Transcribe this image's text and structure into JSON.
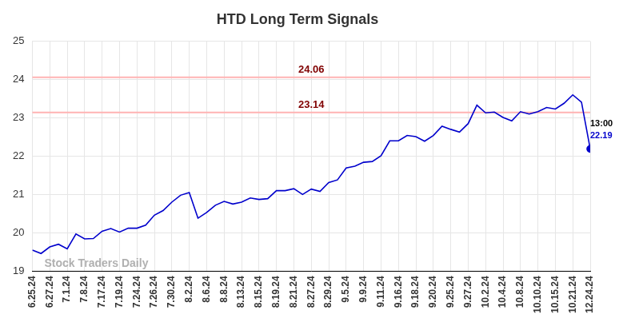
{
  "chart_data": {
    "type": "line",
    "title": "HTD Long Term Signals",
    "categories": [
      "6.25.24",
      null,
      "6.27.24",
      null,
      "7.1.24",
      null,
      "7.8.24",
      null,
      "7.17.24",
      null,
      "7.19.24",
      null,
      "7.24.24",
      null,
      "7.26.24",
      null,
      "7.30.24",
      null,
      "8.2.24",
      null,
      "8.6.24",
      null,
      "8.8.24",
      null,
      "8.13.24",
      null,
      "8.15.24",
      null,
      "8.19.24",
      null,
      "8.21.24",
      null,
      "8.27.24",
      null,
      "8.29.24",
      null,
      "9.5.24",
      null,
      "9.9.24",
      null,
      "9.11.24",
      null,
      "9.16.24",
      null,
      "9.18.24",
      null,
      "9.20.24",
      null,
      "9.25.24",
      null,
      "9.27.24",
      null,
      "10.2.24",
      null,
      "10.4.24",
      null,
      "10.8.24",
      null,
      "10.10.24",
      null,
      "10.15.24",
      null,
      "10.21.24",
      null,
      "12.24.24"
    ],
    "values": [
      19.55,
      19.46,
      19.63,
      19.7,
      19.58,
      19.97,
      19.84,
      19.85,
      20.04,
      20.11,
      20.02,
      20.12,
      20.12,
      20.2,
      20.46,
      20.58,
      20.8,
      20.98,
      21.05,
      20.38,
      20.53,
      20.72,
      20.82,
      20.75,
      20.8,
      20.91,
      20.87,
      20.89,
      21.1,
      21.1,
      21.15,
      21.0,
      21.14,
      21.08,
      21.31,
      21.38,
      21.69,
      21.74,
      21.84,
      21.86,
      22.01,
      22.4,
      22.4,
      22.54,
      22.51,
      22.39,
      22.54,
      22.78,
      22.7,
      22.63,
      22.85,
      23.33,
      23.13,
      23.15,
      23.01,
      22.92,
      23.16,
      23.1,
      23.16,
      23.27,
      23.23,
      23.38,
      23.6,
      23.41,
      22.19
    ],
    "color": "#0000cc",
    "ylim": [
      19,
      25
    ],
    "yticks": [
      19,
      20,
      21,
      22,
      23,
      24,
      25
    ],
    "grid": true,
    "reference_lines": [
      {
        "value": 24.06,
        "label": "24.06",
        "color": "#ffb3b3"
      },
      {
        "value": 23.14,
        "label": "23.14",
        "color": "#ffb3b3"
      }
    ],
    "last_point": {
      "time_label": "13:00",
      "label": "22.19"
    },
    "watermark": "Stock Traders Daily"
  }
}
